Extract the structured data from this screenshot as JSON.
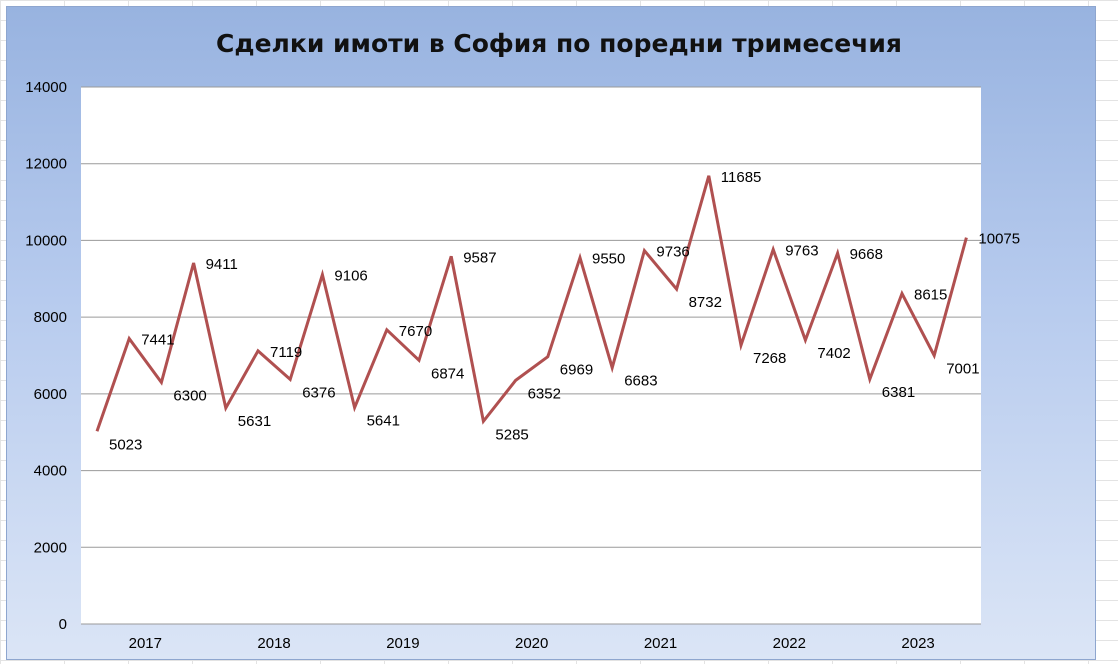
{
  "chart_data": {
    "type": "line",
    "title": "Сделки имоти в София по поредни тримесечия",
    "xlabel": "",
    "ylabel": "",
    "ylim": [
      0,
      14000
    ],
    "yticks": [
      "0",
      "2000",
      "4000",
      "6000",
      "8000",
      "10000",
      "12000",
      "14000"
    ],
    "year_labels": [
      "2017",
      "2018",
      "2019",
      "2020",
      "2021",
      "2022",
      "2023"
    ],
    "grid": true,
    "legend": "none",
    "line_color": "#b05050",
    "series": [
      {
        "values": [
          5023,
          7441,
          6300,
          9411,
          5631,
          7119,
          6376,
          9106,
          5641,
          7670,
          6874,
          9587,
          5285,
          6352,
          6969,
          9550,
          6683,
          9736,
          8732,
          11685,
          7268,
          9763,
          7402,
          9668,
          6381,
          8615,
          7001,
          10075
        ]
      }
    ]
  }
}
